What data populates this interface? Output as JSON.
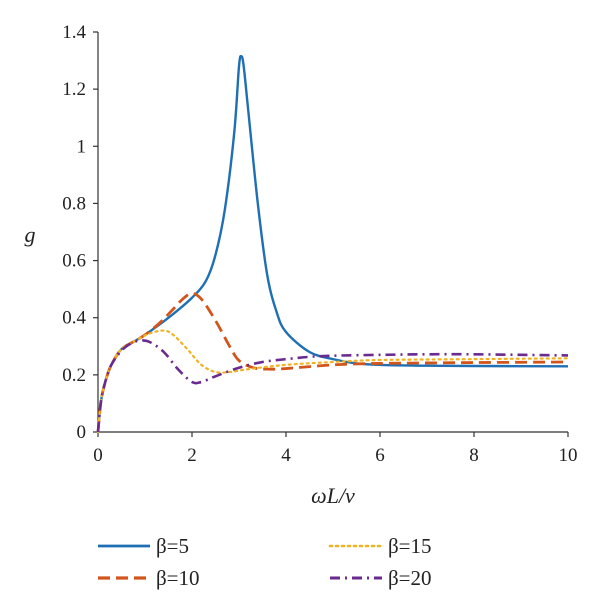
{
  "chart_data": {
    "type": "line",
    "xlabel": "ωL/ν",
    "ylabel": "g",
    "xlim": [
      0,
      10
    ],
    "ylim": [
      0,
      1.4
    ],
    "x_ticks": [
      "0",
      "2",
      "4",
      "6",
      "8",
      "10"
    ],
    "y_ticks": [
      "0",
      "0.2",
      "0.4",
      "0.6",
      "0.8",
      "1",
      "1.2",
      "1.4"
    ],
    "grid": false,
    "legend_position": "bottom",
    "series": [
      {
        "name": "β=5",
        "color": "#1f6fb4",
        "style": "solid",
        "points": [
          [
            0,
            0
          ],
          [
            0.05,
            0.09
          ],
          [
            0.1,
            0.14
          ],
          [
            0.2,
            0.2
          ],
          [
            0.3,
            0.24
          ],
          [
            0.5,
            0.29
          ],
          [
            0.8,
            0.32
          ],
          [
            1.0,
            0.34
          ],
          [
            1.5,
            0.4
          ],
          [
            2.0,
            0.47
          ],
          [
            2.3,
            0.53
          ],
          [
            2.5,
            0.62
          ],
          [
            2.7,
            0.78
          ],
          [
            2.9,
            1.05
          ],
          [
            3.0,
            1.28
          ],
          [
            3.05,
            1.315
          ],
          [
            3.1,
            1.28
          ],
          [
            3.2,
            1.12
          ],
          [
            3.4,
            0.8
          ],
          [
            3.6,
            0.55
          ],
          [
            3.8,
            0.42
          ],
          [
            4.0,
            0.35
          ],
          [
            4.5,
            0.28
          ],
          [
            5.0,
            0.255
          ],
          [
            5.5,
            0.24
          ],
          [
            6.0,
            0.235
          ],
          [
            7.0,
            0.232
          ],
          [
            8.0,
            0.231
          ],
          [
            10.0,
            0.23
          ]
        ]
      },
      {
        "name": "β=10",
        "color": "#d2561c",
        "style": "dashed",
        "points": [
          [
            0,
            0
          ],
          [
            0.05,
            0.09
          ],
          [
            0.1,
            0.14
          ],
          [
            0.2,
            0.2
          ],
          [
            0.3,
            0.24
          ],
          [
            0.5,
            0.29
          ],
          [
            0.8,
            0.32
          ],
          [
            1.0,
            0.34
          ],
          [
            1.3,
            0.38
          ],
          [
            1.6,
            0.43
          ],
          [
            1.8,
            0.465
          ],
          [
            2.0,
            0.485
          ],
          [
            2.2,
            0.465
          ],
          [
            2.5,
            0.39
          ],
          [
            2.8,
            0.3
          ],
          [
            3.0,
            0.25
          ],
          [
            3.3,
            0.225
          ],
          [
            3.6,
            0.22
          ],
          [
            4.0,
            0.222
          ],
          [
            5.0,
            0.235
          ],
          [
            6.0,
            0.24
          ],
          [
            8.0,
            0.243
          ],
          [
            10.0,
            0.245
          ]
        ]
      },
      {
        "name": "β=15",
        "color": "#f0b323",
        "style": "dotted",
        "points": [
          [
            0,
            0
          ],
          [
            0.05,
            0.09
          ],
          [
            0.1,
            0.14
          ],
          [
            0.2,
            0.2
          ],
          [
            0.3,
            0.24
          ],
          [
            0.5,
            0.29
          ],
          [
            0.8,
            0.32
          ],
          [
            1.1,
            0.345
          ],
          [
            1.4,
            0.355
          ],
          [
            1.6,
            0.34
          ],
          [
            1.9,
            0.29
          ],
          [
            2.2,
            0.235
          ],
          [
            2.5,
            0.21
          ],
          [
            2.8,
            0.21
          ],
          [
            3.2,
            0.22
          ],
          [
            4.0,
            0.235
          ],
          [
            5.0,
            0.245
          ],
          [
            6.0,
            0.252
          ],
          [
            8.0,
            0.255
          ],
          [
            10.0,
            0.258
          ]
        ]
      },
      {
        "name": "β=20",
        "color": "#6a2a8f",
        "style": "dashdot",
        "points": [
          [
            0,
            0
          ],
          [
            0.05,
            0.09
          ],
          [
            0.1,
            0.14
          ],
          [
            0.2,
            0.2
          ],
          [
            0.3,
            0.24
          ],
          [
            0.5,
            0.285
          ],
          [
            0.7,
            0.31
          ],
          [
            0.9,
            0.32
          ],
          [
            1.1,
            0.315
          ],
          [
            1.4,
            0.28
          ],
          [
            1.7,
            0.22
          ],
          [
            2.0,
            0.175
          ],
          [
            2.2,
            0.175
          ],
          [
            2.5,
            0.195
          ],
          [
            3.0,
            0.225
          ],
          [
            3.5,
            0.245
          ],
          [
            4.0,
            0.255
          ],
          [
            4.5,
            0.263
          ],
          [
            5.0,
            0.267
          ],
          [
            6.0,
            0.27
          ],
          [
            7.0,
            0.272
          ],
          [
            8.0,
            0.272
          ],
          [
            9.0,
            0.27
          ],
          [
            10.0,
            0.268
          ]
        ]
      }
    ]
  }
}
